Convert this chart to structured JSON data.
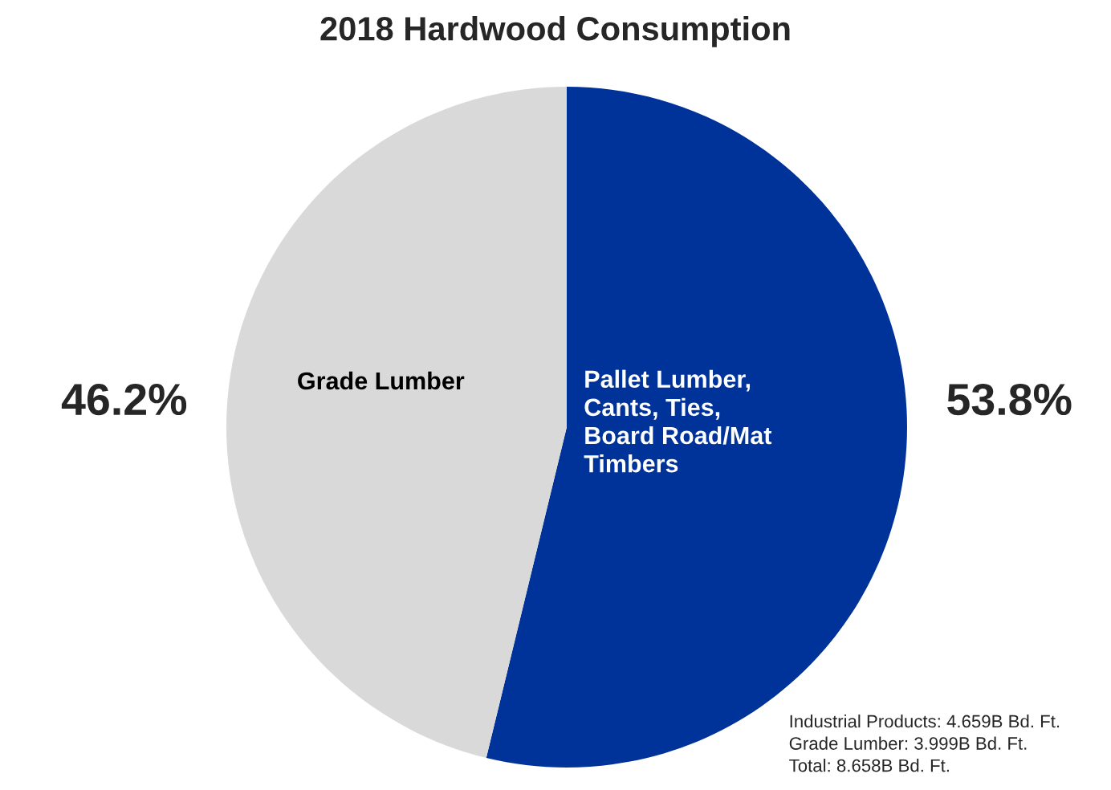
{
  "chart_data": {
    "type": "pie",
    "title": "2018 Hardwood Consumption",
    "categories": [
      "Pallet Lumber,\nCants, Ties,\nBoard Road/Mat\nTimbers",
      "Grade Lumber"
    ],
    "values": [
      53.8,
      46.2
    ],
    "colors": [
      "#003399",
      "#d9d9d9"
    ],
    "value_labels": [
      "53.8%",
      "46.2%"
    ],
    "annotations": [
      "Industrial Products: 4.659B Bd. Ft.",
      "Grade Lumber: 3.999B Bd. Ft.",
      "Total: 8.658B Bd. Ft."
    ]
  }
}
